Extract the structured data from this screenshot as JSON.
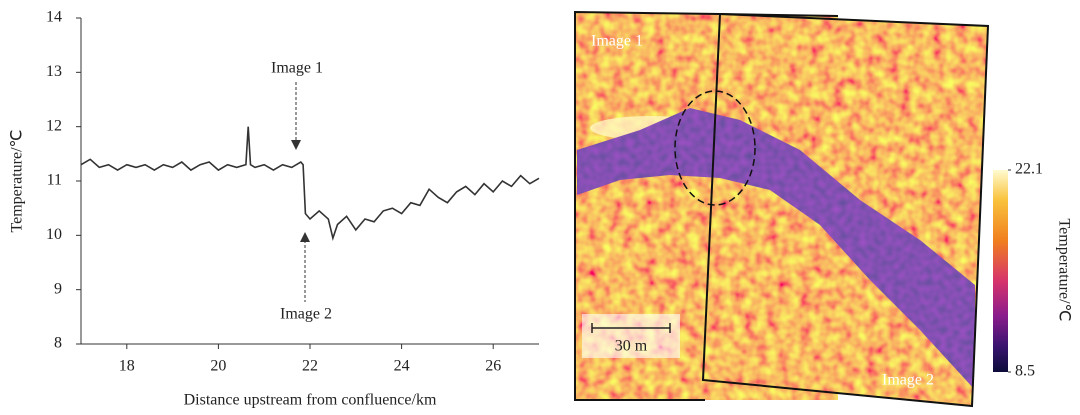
{
  "chart_data": {
    "type": "line",
    "x_label": "Distance upstream from confluence/km",
    "y_label": "Temperature/℃",
    "x": [
      17.0,
      17.2,
      17.4,
      17.6,
      17.8,
      18.0,
      18.2,
      18.4,
      18.6,
      18.8,
      19.0,
      19.2,
      19.4,
      19.6,
      19.8,
      20.0,
      20.2,
      20.4,
      20.6,
      20.65,
      20.7,
      20.8,
      21.0,
      21.2,
      21.4,
      21.6,
      21.8,
      21.85,
      21.9,
      22.0,
      22.2,
      22.4,
      22.5,
      22.6,
      22.8,
      23.0,
      23.2,
      23.4,
      23.6,
      23.8,
      24.0,
      24.2,
      24.4,
      24.6,
      24.8,
      25.0,
      25.2,
      25.4,
      25.6,
      25.8,
      26.0,
      26.2,
      26.4,
      26.6,
      26.8,
      27.0
    ],
    "series": [
      {
        "color": "#333333",
        "values": [
          11.3,
          11.4,
          11.25,
          11.3,
          11.2,
          11.3,
          11.25,
          11.3,
          11.2,
          11.3,
          11.25,
          11.35,
          11.2,
          11.3,
          11.35,
          11.2,
          11.3,
          11.25,
          11.3,
          12.0,
          11.3,
          11.25,
          11.3,
          11.2,
          11.3,
          11.25,
          11.35,
          11.3,
          10.4,
          10.3,
          10.45,
          10.3,
          9.95,
          10.2,
          10.35,
          10.1,
          10.3,
          10.25,
          10.45,
          10.5,
          10.4,
          10.6,
          10.55,
          10.85,
          10.7,
          10.6,
          10.8,
          10.9,
          10.75,
          10.95,
          10.8,
          11.0,
          10.9,
          11.1,
          10.95,
          11.05
        ]
      }
    ],
    "xlim": [
      17,
      27
    ],
    "xticks": [
      18,
      20,
      22,
      24,
      26
    ],
    "ylim": [
      8,
      14
    ],
    "yticks": [
      8,
      9,
      10,
      11,
      12,
      13,
      14
    ],
    "annotations": [
      "Image 1",
      "Image 2"
    ]
  },
  "image_panel": {
    "labels": [
      "Image 1",
      "Image 2"
    ],
    "scale_bar": "30 m",
    "colorbar": {
      "label": "Temperature/℃",
      "lim": [
        8.5,
        22.1
      ],
      "ticks": [
        8.5,
        22.1
      ]
    }
  }
}
